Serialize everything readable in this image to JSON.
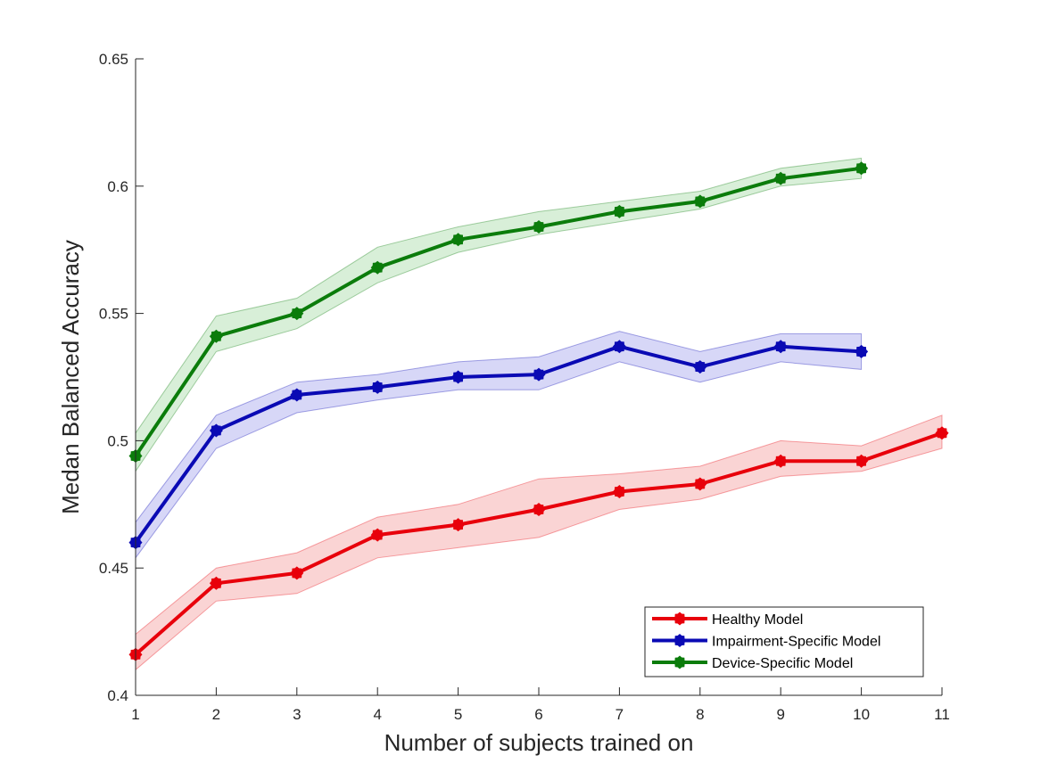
{
  "chart_data": {
    "type": "line",
    "title": "",
    "xlabel": "Number of subjects trained on",
    "ylabel": "Medan Balanced Accuracy",
    "xlim": [
      1,
      11
    ],
    "ylim": [
      0.4,
      0.65
    ],
    "xticks": [
      "1",
      "2",
      "3",
      "4",
      "5",
      "6",
      "7",
      "8",
      "9",
      "10",
      "11"
    ],
    "yticks": [
      "0.4",
      "0.45",
      "0.5",
      "0.55",
      "0.6",
      "0.65"
    ],
    "grid": false,
    "legend_position": "bottom-right",
    "series": [
      {
        "name": "Healthy Model",
        "color": "#e8000b",
        "band_color": "#f4a0a0",
        "x": [
          1,
          2,
          3,
          4,
          5,
          6,
          7,
          8,
          9,
          10,
          11
        ],
        "y": [
          0.416,
          0.444,
          0.448,
          0.463,
          0.467,
          0.473,
          0.48,
          0.483,
          0.492,
          0.492,
          0.503
        ],
        "lower": [
          0.41,
          0.437,
          0.44,
          0.454,
          0.458,
          0.462,
          0.473,
          0.477,
          0.486,
          0.488,
          0.497
        ],
        "upper": [
          0.424,
          0.45,
          0.456,
          0.47,
          0.475,
          0.485,
          0.487,
          0.49,
          0.5,
          0.498,
          0.51
        ]
      },
      {
        "name": "Impairment-Specific Model",
        "color": "#0a0ab4",
        "band_color": "#a6a6ee",
        "x": [
          1,
          2,
          3,
          4,
          5,
          6,
          7,
          8,
          9,
          10
        ],
        "y": [
          0.46,
          0.504,
          0.518,
          0.521,
          0.525,
          0.526,
          0.537,
          0.529,
          0.537,
          0.535
        ],
        "lower": [
          0.454,
          0.497,
          0.511,
          0.516,
          0.52,
          0.52,
          0.531,
          0.523,
          0.531,
          0.528
        ],
        "upper": [
          0.468,
          0.51,
          0.523,
          0.526,
          0.531,
          0.533,
          0.543,
          0.535,
          0.542,
          0.542
        ]
      },
      {
        "name": "Device-Specific Model",
        "color": "#0b7c0b",
        "band_color": "#a8dba8",
        "x": [
          1,
          2,
          3,
          4,
          5,
          6,
          7,
          8,
          9,
          10
        ],
        "y": [
          0.494,
          0.541,
          0.55,
          0.568,
          0.579,
          0.584,
          0.59,
          0.594,
          0.603,
          0.607
        ],
        "lower": [
          0.488,
          0.535,
          0.544,
          0.562,
          0.574,
          0.581,
          0.586,
          0.591,
          0.6,
          0.603
        ],
        "upper": [
          0.503,
          0.549,
          0.556,
          0.576,
          0.584,
          0.59,
          0.594,
          0.598,
          0.607,
          0.611
        ]
      }
    ]
  }
}
